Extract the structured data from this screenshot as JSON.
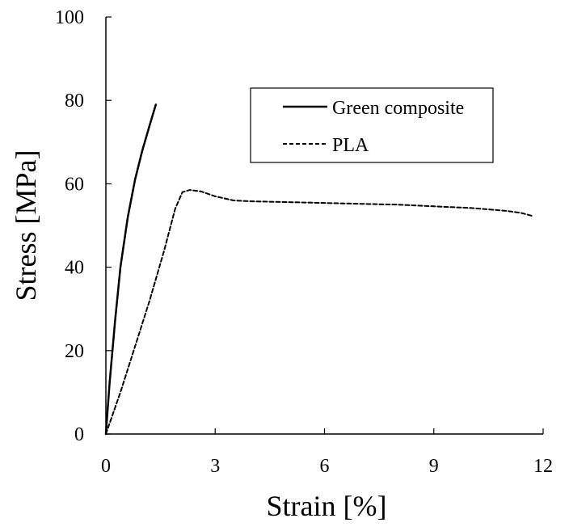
{
  "chart_data": {
    "type": "line",
    "title": "",
    "xlabel": "Strain  [%]",
    "ylabel": "Stress  [MPa]",
    "xlim": [
      0,
      12
    ],
    "ylim": [
      0,
      100
    ],
    "xticks": [
      "0",
      "3",
      "6",
      "9",
      "12"
    ],
    "yticks": [
      "0",
      "20",
      "40",
      "60",
      "80",
      "100"
    ],
    "grid": false,
    "legend_position": "top-right",
    "series": [
      {
        "name": "Green composite",
        "style": "solid",
        "color": "#000000",
        "x": [
          0,
          0.1,
          0.25,
          0.4,
          0.6,
          0.8,
          1.0,
          1.2,
          1.37
        ],
        "y": [
          0,
          12,
          27,
          40,
          52,
          61,
          68,
          74,
          79
        ]
      },
      {
        "name": "PLA",
        "style": "dashed",
        "color": "#000000",
        "x": [
          0,
          0.4,
          0.8,
          1.2,
          1.6,
          1.9,
          2.1,
          2.3,
          2.6,
          3.0,
          3.5,
          4.0,
          5.0,
          6.0,
          7.0,
          8.0,
          9.0,
          10.0,
          11.0,
          11.4,
          11.7
        ],
        "y": [
          0,
          10,
          21,
          32,
          44,
          54,
          58,
          58.5,
          58.2,
          57,
          56,
          55.8,
          55.6,
          55.4,
          55.2,
          55.0,
          54.6,
          54.2,
          53.5,
          53.0,
          52.3
        ]
      }
    ]
  }
}
